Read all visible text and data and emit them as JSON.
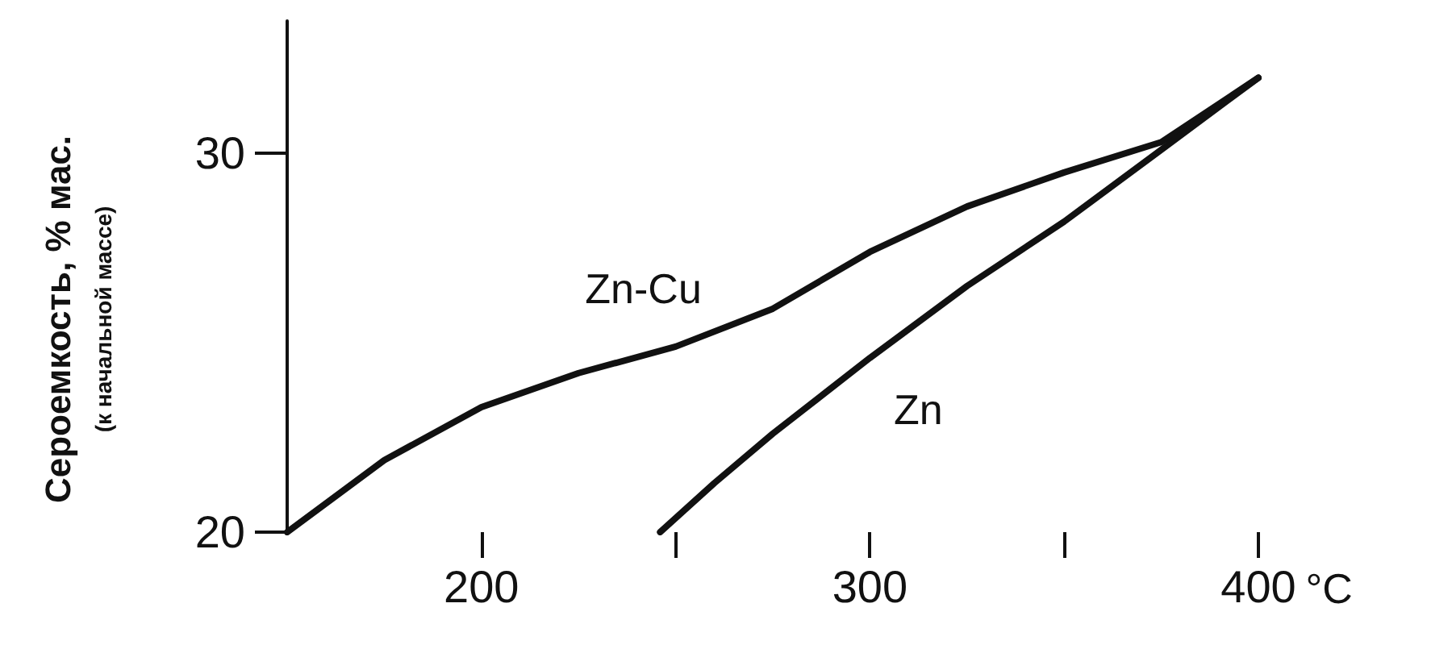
{
  "chart_data": {
    "type": "line",
    "xlabel": "°C",
    "ylabel": "Сероемкость, % мас.",
    "annotations": [
      "(к начальной массе)"
    ],
    "xlim": [
      150,
      400
    ],
    "ylim": [
      20,
      33.5
    ],
    "xticks": [
      200,
      {
        "value": 250,
        "label": null
      },
      300,
      {
        "value": 350,
        "label": null
      },
      400
    ],
    "yticks": [
      20,
      30
    ],
    "grid": false,
    "legend": false,
    "marker": "none",
    "line_style": "solid",
    "series": [
      {
        "name": "Zn-Cu",
        "color": "#111111",
        "x": [
          150,
          175,
          200,
          225,
          250,
          275,
          300,
          325,
          350,
          375,
          400
        ],
        "values": [
          20,
          21.9,
          23.3,
          24.2,
          24.9,
          25.9,
          27.4,
          28.6,
          29.5,
          30.3,
          32
        ]
      },
      {
        "name": "Zn",
        "color": "#111111",
        "x": [
          246,
          260,
          275,
          300,
          325,
          350,
          375,
          400
        ],
        "values": [
          20,
          21.3,
          22.6,
          24.6,
          26.5,
          28.2,
          30.1,
          32
        ]
      }
    ]
  }
}
